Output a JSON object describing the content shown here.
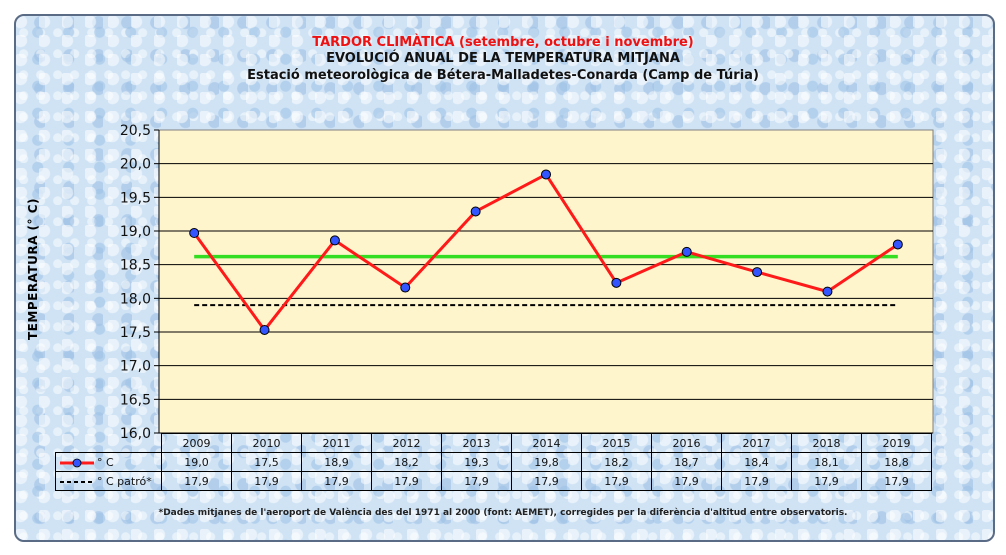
{
  "title_line1": "TARDOR CLIMÀTICA (setembre, octubre i novembre)",
  "title_line2": "EVOLUCIÓ ANUAL DE LA TEMPERATURA MITJANA",
  "title_line3": "Estació meteorològica de Bétera-Malladetes-Conarda (Camp de Túria)",
  "footnote": "*Dades mitjanes de l'aeroport de València des del 1971 al 2000 (font: AEMET), corregides per la diferència d'altitud entre observatoris.",
  "colors": {
    "series": "#ff1a1a",
    "marker": "#3355ff",
    "mean": "#33dd22",
    "patro": "#000000",
    "plot_bg": "#fff5cc"
  },
  "chart_data": {
    "type": "line",
    "ylabel": "TEMPERATURA (° C)",
    "ylim": [
      16.0,
      20.5
    ],
    "yticks": [
      "16,0",
      "16,5",
      "17,0",
      "17,5",
      "18,0",
      "18,5",
      "19,0",
      "19,5",
      "20,0",
      "20,5"
    ],
    "categories": [
      "2009",
      "2010",
      "2011",
      "2012",
      "2013",
      "2014",
      "2015",
      "2016",
      "2017",
      "2018",
      "2019"
    ],
    "series": [
      {
        "name": "° C",
        "values": [
          18.97,
          17.53,
          18.86,
          18.16,
          19.29,
          19.84,
          18.23,
          18.69,
          18.39,
          18.1,
          18.8
        ],
        "labels": [
          "19,0",
          "17,5",
          "18,9",
          "18,2",
          "19,3",
          "19,8",
          "18,2",
          "18,7",
          "18,4",
          "18,1",
          "18,8"
        ]
      },
      {
        "name": "° C  patró*",
        "values": [
          17.9,
          17.9,
          17.9,
          17.9,
          17.9,
          17.9,
          17.9,
          17.9,
          17.9,
          17.9,
          17.9
        ],
        "labels": [
          "17,9",
          "17,9",
          "17,9",
          "17,9",
          "17,9",
          "17,9",
          "17,9",
          "17,9",
          "17,9",
          "17,9",
          "17,9"
        ]
      }
    ],
    "mean_line": 18.62,
    "grid": true
  }
}
